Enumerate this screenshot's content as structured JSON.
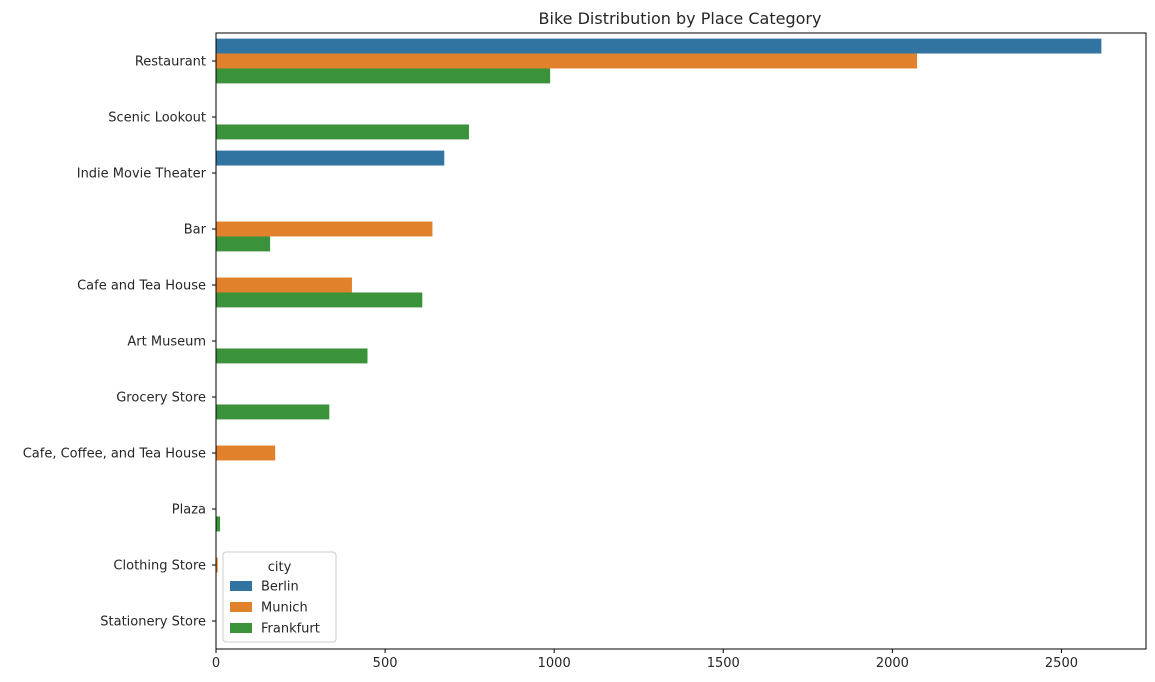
{
  "chart_data": {
    "type": "bar",
    "orientation": "horizontal",
    "title": "Bike Distribution by Place Category",
    "xlabel": "",
    "ylabel": "",
    "xlim": [
      0,
      2750
    ],
    "x_ticks": [
      0,
      500,
      1000,
      1500,
      2000,
      2500
    ],
    "grid": false,
    "categories": [
      "Restaurant",
      "Scenic Lookout",
      "Indie Movie Theater",
      "Bar",
      "Cafe and Tea House",
      "Art Museum",
      "Grocery Store",
      "Cafe, Coffee, and Tea House",
      "Plaza",
      "Clothing Store",
      "Stationery Store"
    ],
    "legend": {
      "title": "city",
      "placement": "lower-left"
    },
    "series": [
      {
        "name": "Berlin",
        "color": "#3274a1",
        "values": [
          2618,
          0,
          675,
          0,
          0,
          0,
          0,
          0,
          0,
          0,
          0
        ]
      },
      {
        "name": "Munich",
        "color": "#e1812c",
        "values": [
          2073,
          0,
          0,
          640,
          402,
          0,
          0,
          175,
          0,
          5,
          0
        ]
      },
      {
        "name": "Frankfurt",
        "color": "#3a923a",
        "values": [
          988,
          748,
          0,
          160,
          610,
          448,
          335,
          0,
          12,
          0,
          0
        ]
      }
    ]
  }
}
